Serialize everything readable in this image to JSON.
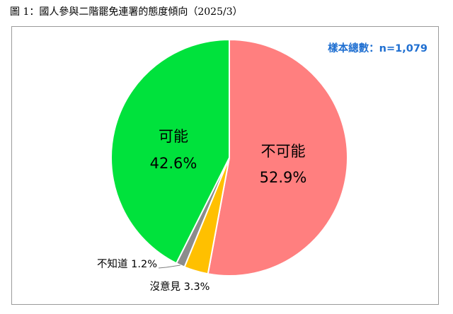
{
  "figure": {
    "title": "圖 1：國人參與二階罷免連署的態度傾向（2025/3）",
    "sample_note": "樣本總數：n=1,079"
  },
  "chart_data": {
    "type": "pie",
    "slices": [
      {
        "label": "不可能",
        "value": 52.9,
        "value_label": "52.9%",
        "color": "#ff7f7f"
      },
      {
        "label": "沒意見",
        "value": 3.3,
        "value_label": "沒意見 3.3%",
        "color": "#ffc000"
      },
      {
        "label": "不知道",
        "value": 1.2,
        "value_label": "不知道 1.2%",
        "color": "#8c8c8c"
      },
      {
        "label": "可能",
        "value": 42.6,
        "value_label": "42.6%",
        "color": "#00e23c"
      }
    ],
    "start": "top (12 o'clock)",
    "direction": "clockwise"
  }
}
